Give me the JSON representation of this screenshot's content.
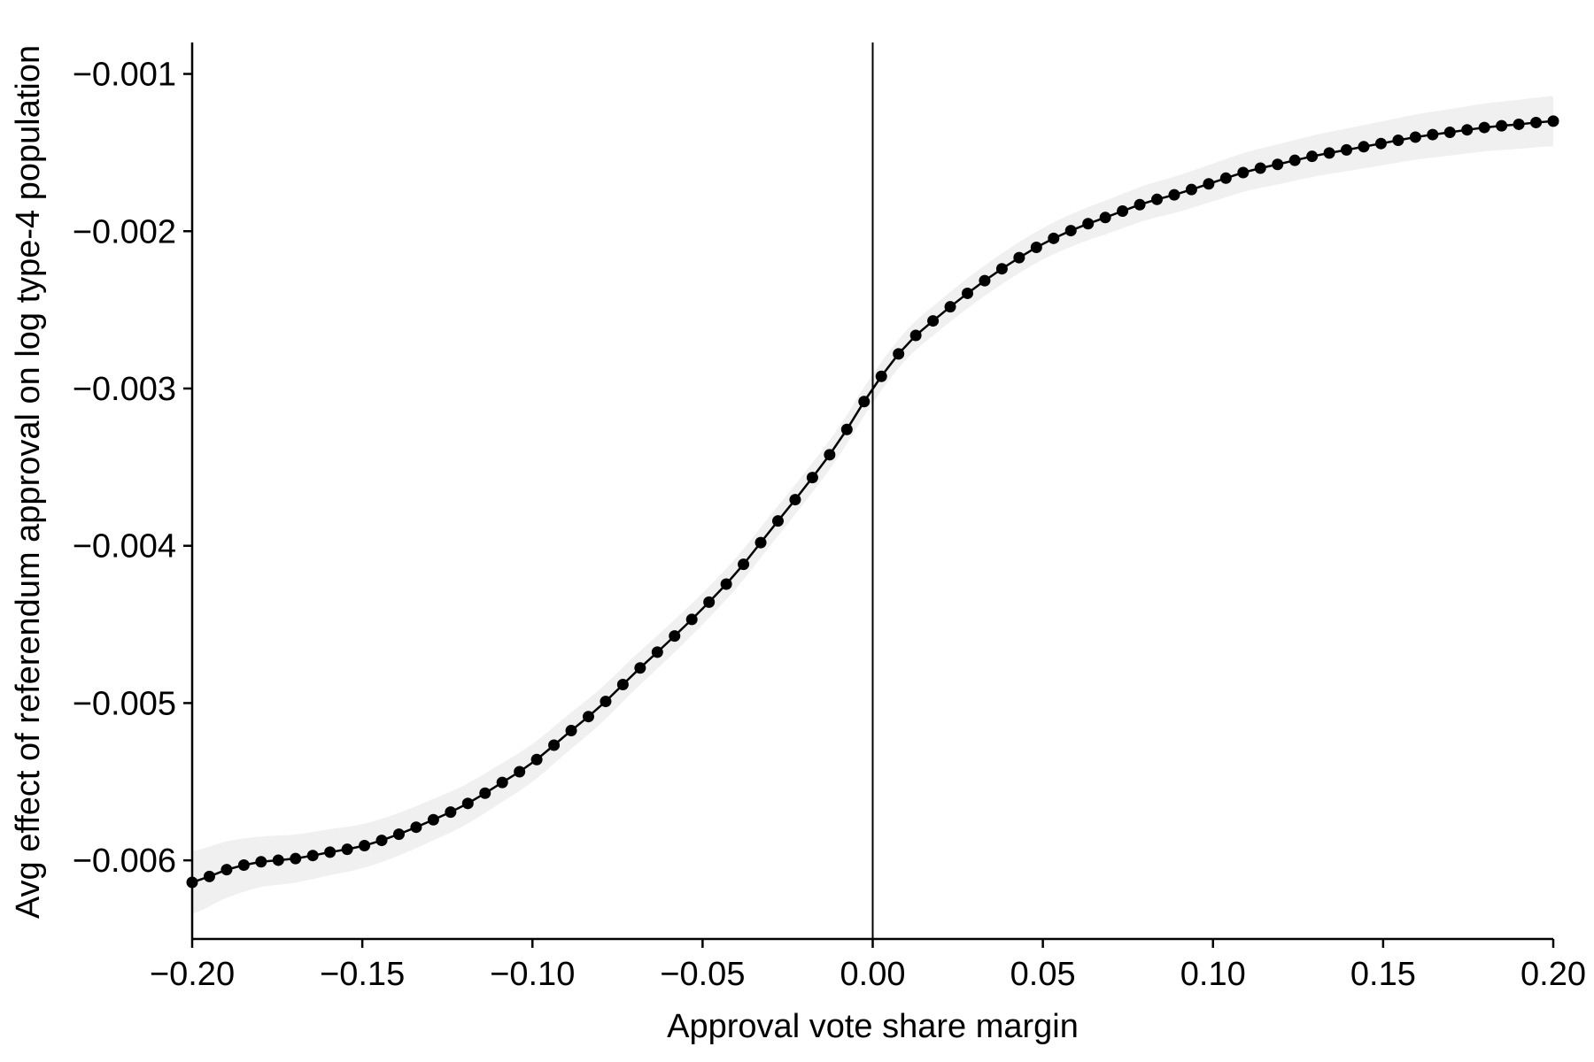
{
  "chart_data": {
    "type": "line",
    "title": "",
    "xlabel": "Approval vote share margin",
    "ylabel": "Avg effect of referendum approval on log type-4 population",
    "xlim": [
      -0.2,
      0.2
    ],
    "ylim": [
      -0.0065,
      -0.0008
    ],
    "x_ticks": [
      -0.2,
      -0.15,
      -0.1,
      -0.05,
      0.0,
      0.05,
      0.1,
      0.15,
      0.2
    ],
    "x_tick_labels": [
      "−0.20",
      "−0.15",
      "−0.10",
      "−0.05",
      "0.00",
      "0.05",
      "0.10",
      "0.15",
      "0.20"
    ],
    "y_ticks": [
      -0.006,
      -0.005,
      -0.004,
      -0.003,
      -0.002,
      -0.001
    ],
    "y_tick_labels": [
      "−0.006",
      "−0.005",
      "−0.004",
      "−0.003",
      "−0.002",
      "−0.001"
    ],
    "reference_line_x": 0.0,
    "grid": false,
    "legend": "none",
    "colors": {
      "line": "#000000",
      "marker": "#000000",
      "band": "#f0f0f0",
      "reference": "#000000"
    },
    "curve_points": [
      [
        -0.2,
        -0.00614
      ],
      [
        -0.19,
        -0.00606
      ],
      [
        -0.18,
        -0.00601
      ],
      [
        -0.17,
        -0.00599
      ],
      [
        -0.16,
        -0.00595
      ],
      [
        -0.15,
        -0.00591
      ],
      [
        -0.14,
        -0.00584
      ],
      [
        -0.13,
        -0.00575
      ],
      [
        -0.12,
        -0.00565
      ],
      [
        -0.11,
        -0.00552
      ],
      [
        -0.1,
        -0.00538
      ],
      [
        -0.09,
        -0.0052
      ],
      [
        -0.08,
        -0.00502
      ],
      [
        -0.07,
        -0.00481
      ],
      [
        -0.06,
        -0.00461
      ],
      [
        -0.05,
        -0.0044
      ],
      [
        -0.04,
        -0.00417
      ],
      [
        -0.03,
        -0.0039
      ],
      [
        -0.02,
        -0.00363
      ],
      [
        -0.01,
        -0.00334
      ],
      [
        0.0,
        -0.003
      ],
      [
        0.01,
        -0.00272
      ],
      [
        0.02,
        -0.00253
      ],
      [
        0.03,
        -0.00236
      ],
      [
        0.04,
        -0.00221
      ],
      [
        0.05,
        -0.00208
      ],
      [
        0.06,
        -0.00198
      ],
      [
        0.07,
        -0.0019
      ],
      [
        0.08,
        -0.00182
      ],
      [
        0.09,
        -0.00176
      ],
      [
        0.1,
        -0.00169
      ],
      [
        0.11,
        -0.00162
      ],
      [
        0.12,
        -0.00157
      ],
      [
        0.13,
        -0.00152
      ],
      [
        0.14,
        -0.00148
      ],
      [
        0.15,
        -0.00144
      ],
      [
        0.16,
        -0.0014
      ],
      [
        0.17,
        -0.00137
      ],
      [
        0.18,
        -0.00134
      ],
      [
        0.19,
        -0.00132
      ],
      [
        0.2,
        -0.0013
      ]
    ],
    "band_halfwidth": [
      [
        -0.2,
        0.0002
      ],
      [
        -0.18,
        0.00016
      ],
      [
        -0.15,
        0.00014
      ],
      [
        -0.1,
        0.00012
      ],
      [
        -0.05,
        0.0001
      ],
      [
        0.0,
        9e-05
      ],
      [
        0.05,
        0.0001
      ],
      [
        0.1,
        0.00012
      ],
      [
        0.15,
        0.00014
      ],
      [
        0.2,
        0.00016
      ]
    ],
    "marker_count": 80
  }
}
